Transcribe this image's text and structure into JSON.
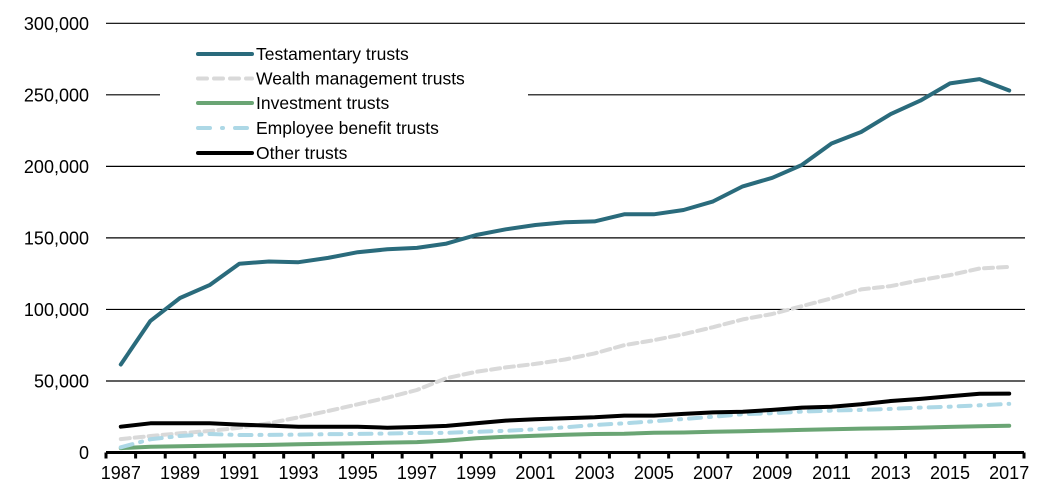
{
  "chart_data": {
    "type": "line",
    "title": "",
    "xlabel": "",
    "ylabel": "",
    "ylim": [
      0,
      300000
    ],
    "yticks": [
      0,
      50000,
      100000,
      150000,
      200000,
      250000,
      300000
    ],
    "ytick_labels": [
      "0",
      "50,000",
      "100,000",
      "150,000",
      "200,000",
      "250,000",
      "300,000"
    ],
    "x": [
      1987,
      1988,
      1989,
      1990,
      1991,
      1992,
      1993,
      1994,
      1995,
      1996,
      1997,
      1998,
      1999,
      2000,
      2001,
      2002,
      2003,
      2004,
      2005,
      2006,
      2007,
      2008,
      2009,
      2010,
      2011,
      2012,
      2013,
      2014,
      2015,
      2016,
      2017
    ],
    "xtick_labels": [
      "1987",
      "1989",
      "1991",
      "1993",
      "1995",
      "1997",
      "1999",
      "2001",
      "2003",
      "2005",
      "2007",
      "2009",
      "2011",
      "2013",
      "2015",
      "2017"
    ],
    "grid": "horizontal",
    "legend_position": "top-left",
    "series": [
      {
        "name": "Testamentary trusts",
        "color": "#2a6b7c",
        "style": "solid",
        "values": [
          61500,
          92000,
          108000,
          117000,
          132000,
          133500,
          133000,
          136000,
          140000,
          142000,
          143000,
          146000,
          152000,
          156000,
          159000,
          161000,
          161500,
          166500,
          166500,
          169500,
          175500,
          186000,
          192000,
          201000,
          216000,
          224000,
          236500,
          246000,
          258000,
          261000,
          253000
        ]
      },
      {
        "name": "Wealth management trusts",
        "color": "#d9d9d9",
        "style": "dashed",
        "values": [
          9400,
          11500,
          13400,
          15000,
          17300,
          20400,
          24600,
          29000,
          33700,
          38300,
          43700,
          52000,
          56400,
          59500,
          61900,
          65000,
          69300,
          75000,
          78500,
          82700,
          87600,
          93000,
          96800,
          102300,
          107700,
          114000,
          116300,
          120500,
          124000,
          128600,
          129700
        ]
      },
      {
        "name": "Investment trusts",
        "color": "#6aa574",
        "style": "solid",
        "values": [
          3100,
          4000,
          4300,
          4700,
          5000,
          5300,
          5700,
          6100,
          6500,
          6900,
          7300,
          8300,
          9900,
          11000,
          11700,
          12400,
          12900,
          13100,
          13800,
          14000,
          14500,
          14900,
          15300,
          15800,
          16300,
          16700,
          17000,
          17400,
          17900,
          18400,
          18700
        ]
      },
      {
        "name": "Employee benefit trusts",
        "color": "#add8e6",
        "style": "dash-dot",
        "values": [
          3600,
          9200,
          11500,
          12900,
          12200,
          12300,
          12500,
          12800,
          13000,
          13300,
          13700,
          13800,
          14500,
          15200,
          16200,
          17600,
          19200,
          20400,
          21800,
          23400,
          25000,
          26800,
          27500,
          28600,
          29300,
          29800,
          30500,
          31400,
          32000,
          33000,
          34000
        ]
      },
      {
        "name": "Other trusts",
        "color": "#000000",
        "style": "solid",
        "values": [
          18000,
          20400,
          20500,
          20400,
          19500,
          18800,
          18000,
          18000,
          18000,
          17300,
          17800,
          18600,
          20500,
          22300,
          23300,
          24000,
          24600,
          25800,
          25800,
          27000,
          28000,
          28500,
          29800,
          31400,
          32000,
          33700,
          36000,
          37500,
          39300,
          41000,
          41200
        ]
      }
    ]
  }
}
